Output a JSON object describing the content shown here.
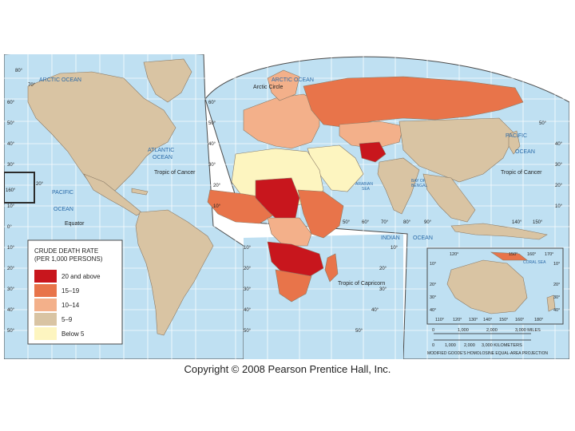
{
  "legend": {
    "title_line1": "CRUDE DEATH RATE",
    "title_line2": "(PER 1,000 PERSONS)",
    "items": [
      {
        "label": "20 and above",
        "color": "#c8161d"
      },
      {
        "label": "15–19",
        "color": "#e8744a"
      },
      {
        "label": "10–14",
        "color": "#f3b08a"
      },
      {
        "label": "5–9",
        "color": "#d9c4a3"
      },
      {
        "label": "Below 5",
        "color": "#fdf5c0"
      }
    ]
  },
  "colors": {
    "ocean": "#bfe0f2",
    "grid": "#ffffff",
    "border": "#2b2b2b",
    "frame_line": "#4a4a4a"
  },
  "ocean_labels": {
    "arctic_left": "ARCTIC OCEAN",
    "arctic_right": "ARCTIC OCEAN",
    "atlantic_1": "ATLANTIC",
    "atlantic_2": "OCEAN",
    "pacific_left_1": "PACIFIC",
    "pacific_left_2": "OCEAN",
    "pacific_right_1": "PACIFIC",
    "pacific_right_2": "OCEAN",
    "indian": "INDIAN",
    "indian_ocean": "OCEAN",
    "arabian_1": "ARABIAN",
    "arabian_2": "SEA",
    "bengal_1": "BAY OF",
    "bengal_2": "BENGAL",
    "coral": "CORAL SEA"
  },
  "line_labels": {
    "arctic_circle": "Arctic Circle",
    "tropic_cancer_left": "Tropic of Cancer",
    "tropic_cancer_right": "Tropic of Cancer",
    "equator": "Equator",
    "tropic_capricorn": "Tropic of Capricorn"
  },
  "lat_labels_left": [
    "80°",
    "70°",
    "60°",
    "50°",
    "40°",
    "30°",
    "20°",
    "10°",
    "0°",
    "10°",
    "20°",
    "30°",
    "40°",
    "50°"
  ],
  "lat_labels_mid": [
    "60°",
    "50°",
    "40°",
    "30°",
    "20°",
    "10°",
    "10°",
    "20°",
    "30°",
    "40°",
    "50°"
  ],
  "lat_labels_right": [
    "50°",
    "40°",
    "30°",
    "20°",
    "10°",
    "10°",
    "20°",
    "30°",
    "40°",
    "50°"
  ],
  "lat_label_160": "160°",
  "lon_labels_row": [
    "50°",
    "60°",
    "70°",
    "80°",
    "90°"
  ],
  "lon_labels_right": [
    "140°",
    "150°"
  ],
  "inset": {
    "top_labels": [
      "120°",
      "150°",
      "160°",
      "170°"
    ],
    "bottom_labels": [
      "110°",
      "120°",
      "130°",
      "140°",
      "150°",
      "160°",
      "180°"
    ],
    "lat_labels": [
      "10°",
      "20°",
      "30°",
      "40°"
    ],
    "right_lat_labels": [
      "10°",
      "20°",
      "30°",
      "40°"
    ]
  },
  "scale": {
    "miles_ticks": [
      "0",
      "1,000",
      "2,000",
      "3,000 MILES"
    ],
    "km_ticks": [
      "0",
      "1,000",
      "2,000",
      "3,000 KILOMETERS"
    ],
    "projection": "MODIFIED GOODE'S HOMOLOSINE EQUAL-AREA PROJECTION"
  },
  "copyright": "Copyright © 2008 Pearson Prentice Hall, Inc."
}
